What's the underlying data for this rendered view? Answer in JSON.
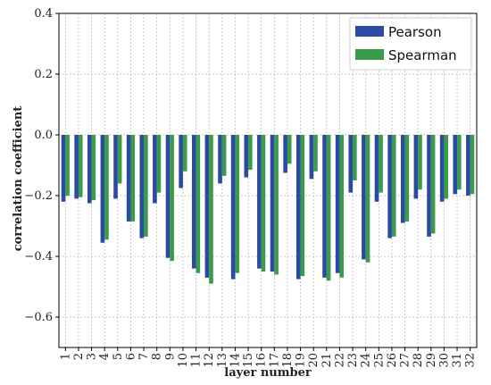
{
  "chart_data": {
    "type": "bar",
    "xlabel": "layer number",
    "ylabel": "correlation coefficient",
    "ylim": [
      -0.7,
      0.4
    ],
    "yticks": [
      "0.4",
      "0.2",
      "0.0",
      "−0.2",
      "−0.4",
      "−0.6"
    ],
    "categories": [
      "1",
      "2",
      "3",
      "4",
      "5",
      "6",
      "7",
      "8",
      "9",
      "10",
      "11",
      "12",
      "13",
      "14",
      "15",
      "16",
      "17",
      "18",
      "19",
      "20",
      "21",
      "22",
      "23",
      "24",
      "25",
      "26",
      "27",
      "28",
      "29",
      "30",
      "31",
      "32"
    ],
    "series": [
      {
        "name": "Pearson",
        "color": "#2b4aa2",
        "values": [
          -0.22,
          -0.21,
          -0.225,
          -0.355,
          -0.21,
          -0.285,
          -0.34,
          -0.225,
          -0.405,
          -0.175,
          -0.44,
          -0.47,
          -0.16,
          -0.475,
          -0.14,
          -0.44,
          -0.45,
          -0.125,
          -0.475,
          -0.145,
          -0.47,
          -0.455,
          -0.19,
          -0.41,
          -0.22,
          -0.34,
          -0.29,
          -0.21,
          -0.335,
          -0.22,
          -0.195,
          -0.2
        ]
      },
      {
        "name": "Spearman",
        "color": "#3a9c4a",
        "values": [
          -0.2,
          -0.205,
          -0.215,
          -0.345,
          -0.16,
          -0.285,
          -0.335,
          -0.19,
          -0.415,
          -0.12,
          -0.455,
          -0.49,
          -0.135,
          -0.455,
          -0.115,
          -0.45,
          -0.46,
          -0.095,
          -0.465,
          -0.12,
          -0.48,
          -0.47,
          -0.15,
          -0.42,
          -0.19,
          -0.335,
          -0.285,
          -0.18,
          -0.325,
          -0.21,
          -0.18,
          -0.195
        ]
      }
    ],
    "grid": true,
    "legend": {
      "placement": "top-right"
    }
  }
}
